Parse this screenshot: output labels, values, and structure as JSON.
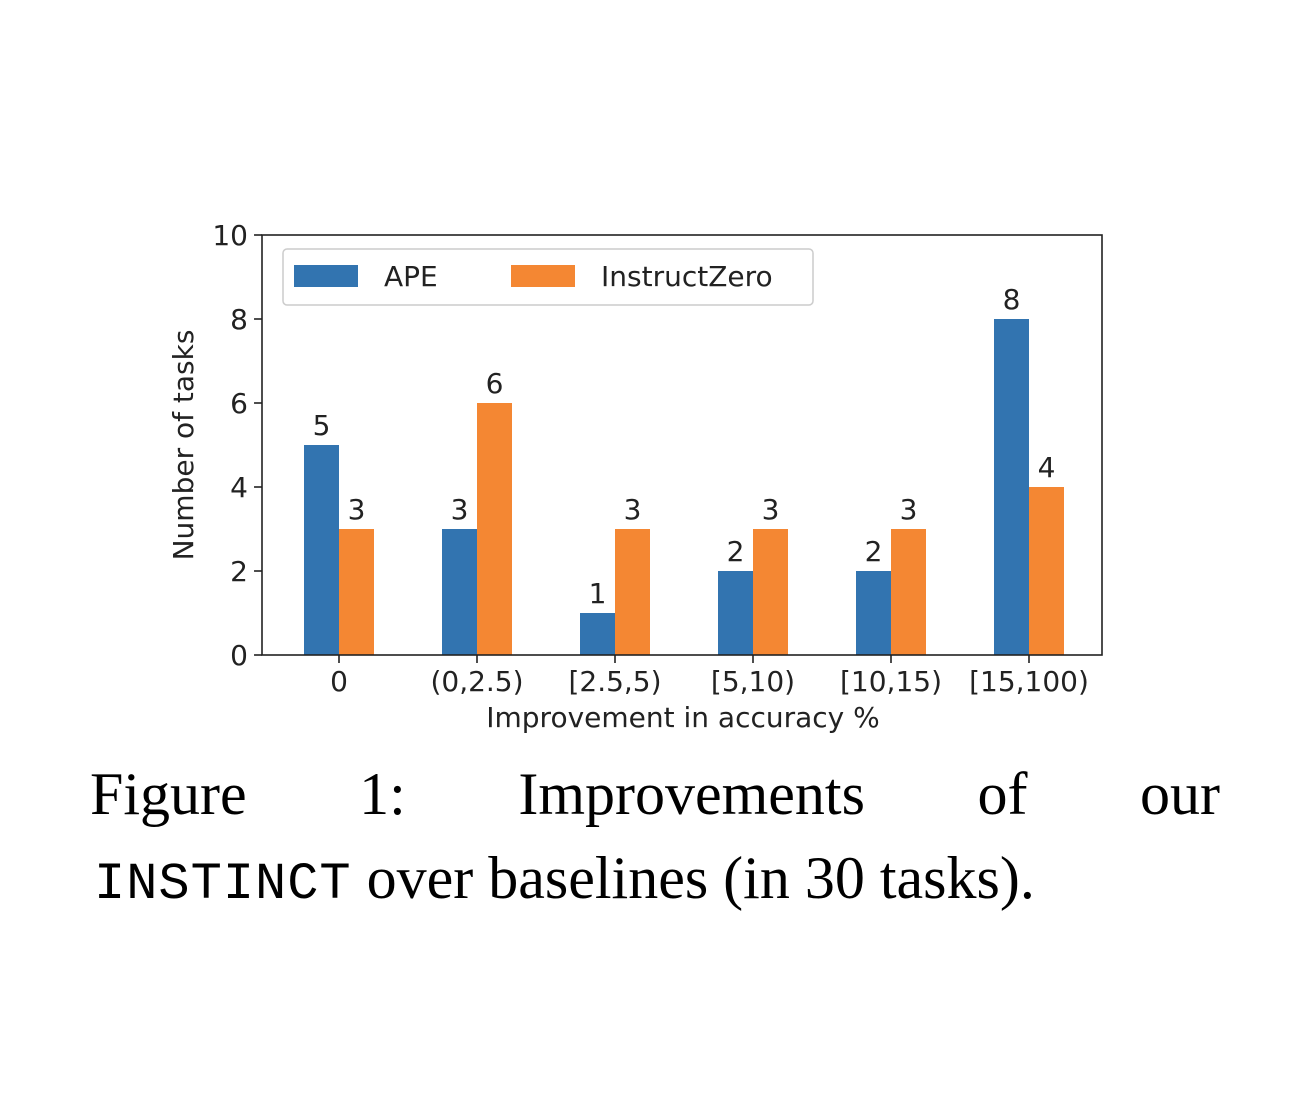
{
  "chart_data": {
    "type": "bar",
    "categories": [
      "0",
      "(0,2.5)",
      "[2.5,5)",
      "[5,10)",
      "[10,15)",
      "[15,100)"
    ],
    "series": [
      {
        "name": "APE",
        "values": [
          5,
          3,
          1,
          2,
          2,
          8
        ],
        "color": "#3274b0"
      },
      {
        "name": "InstructZero",
        "values": [
          3,
          6,
          3,
          3,
          3,
          4
        ],
        "color": "#f48733"
      }
    ],
    "title": "",
    "xlabel": "Improvement in accuracy %",
    "ylabel": "Number of tasks",
    "ylim": [
      0,
      10
    ],
    "yticks": [
      "0",
      "2",
      "4",
      "6",
      "8",
      "10"
    ],
    "legend_position": "top-left",
    "grid": false,
    "data_labels": true
  },
  "caption": {
    "line1_words": [
      "Figure",
      "1:",
      "Improvements",
      "of",
      "our"
    ],
    "line2_mono": "INSTINCT",
    "line2_rest": " over baselines (in 30 tasks)."
  }
}
